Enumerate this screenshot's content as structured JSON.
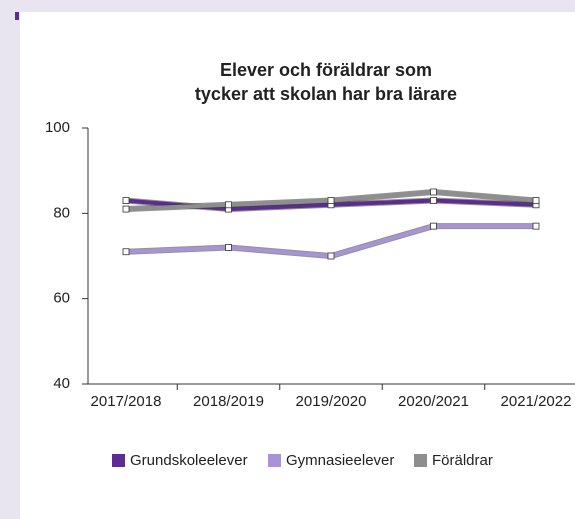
{
  "chart_data": {
    "type": "line",
    "title": [
      "Elever och föräldrar som",
      "tycker att skolan har bra lärare"
    ],
    "categories": [
      "2017/2018",
      "2018/2019",
      "2019/2020",
      "2020/2021",
      "2021/2022"
    ],
    "series": [
      {
        "name": "Grundskoleelever",
        "color": "#5c2d91",
        "values": [
          83,
          81,
          82,
          83,
          82
        ]
      },
      {
        "name": "Gymnasieelever",
        "color": "#a893d8",
        "values": [
          71,
          72,
          70,
          77,
          77
        ]
      },
      {
        "name": "Föräldrar",
        "color": "#8e8e8e",
        "values": [
          81,
          82,
          83,
          85,
          83
        ]
      }
    ],
    "ylim": [
      40,
      100
    ],
    "yticks": [
      40,
      60,
      80,
      100
    ],
    "grid": false,
    "legend": "bottom"
  }
}
